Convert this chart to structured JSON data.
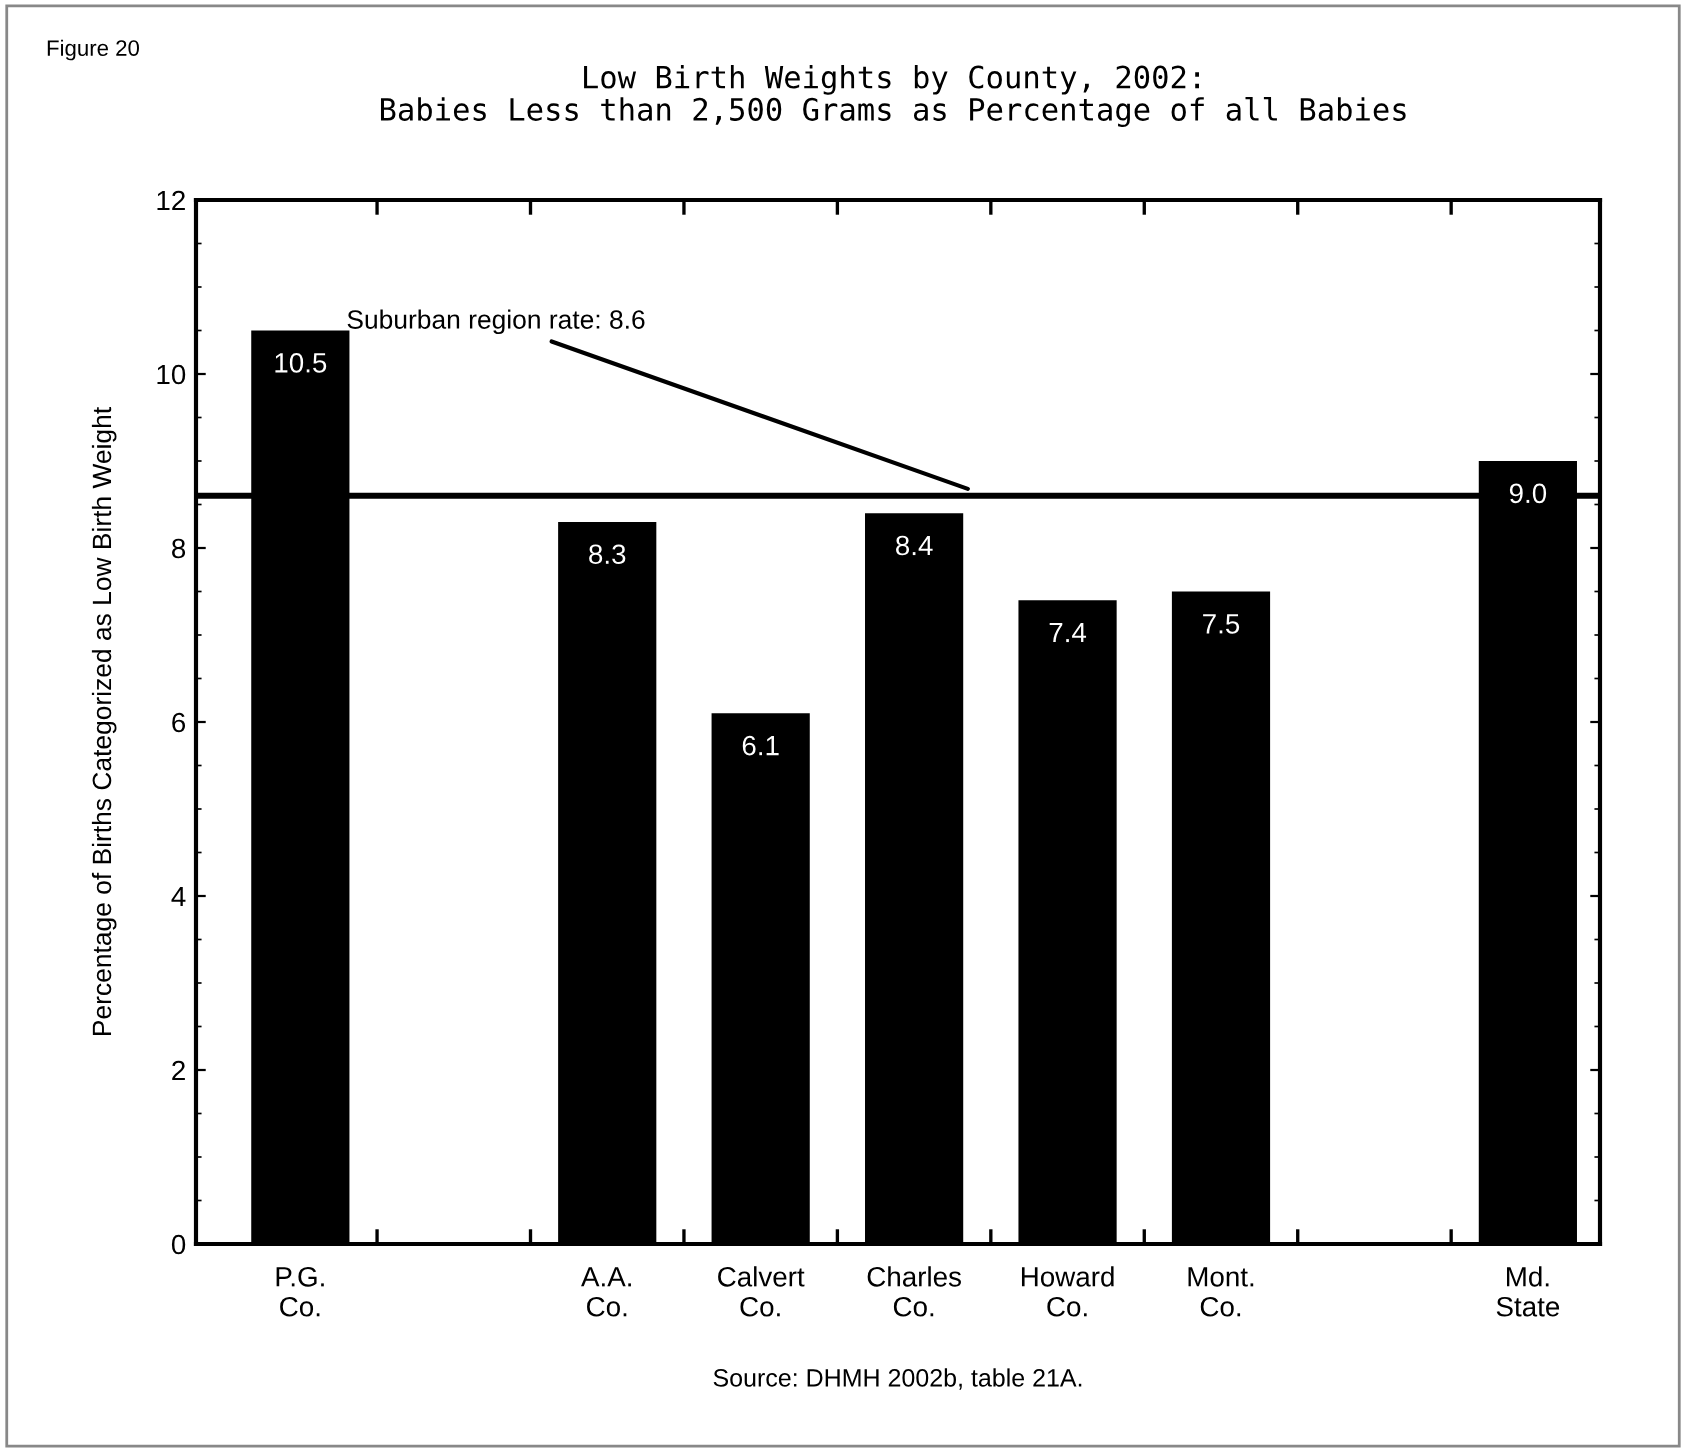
{
  "chart_data": {
    "type": "bar",
    "title": "Low Birth Weights by County, 2002:\nBabies Less than 2,500 Grams as Percentage of all Babies",
    "ylabel": "Percentage of Births Categorized as Low Birth Weight",
    "categories": [
      "P.G.\nCo.",
      null,
      "A.A.\nCo.",
      "Calvert\nCo.",
      "Charles\nCo.",
      "Howard\nCo.",
      "Mont.\nCo.",
      null,
      "Md.\nState"
    ],
    "values": [
      10.5,
      null,
      8.3,
      6.1,
      8.4,
      7.4,
      7.5,
      null,
      9.0
    ],
    "color": "#000000",
    "value_labels": [
      "10.5",
      null,
      "8.3",
      "6.1",
      "8.4",
      "7.4",
      "7.5",
      null,
      "9.0"
    ],
    "ylim": [
      0,
      12
    ],
    "yticks": [
      0,
      2,
      4,
      6,
      8,
      10,
      12
    ],
    "grid": false,
    "ref_lines": [
      {
        "axis": "y",
        "value": 8.6,
        "label": "Suburban region rate: 8.6",
        "color": "#000000"
      }
    ],
    "annotations": [
      "Figure 20",
      "Source: DHMH 2002b, table 21A."
    ]
  }
}
